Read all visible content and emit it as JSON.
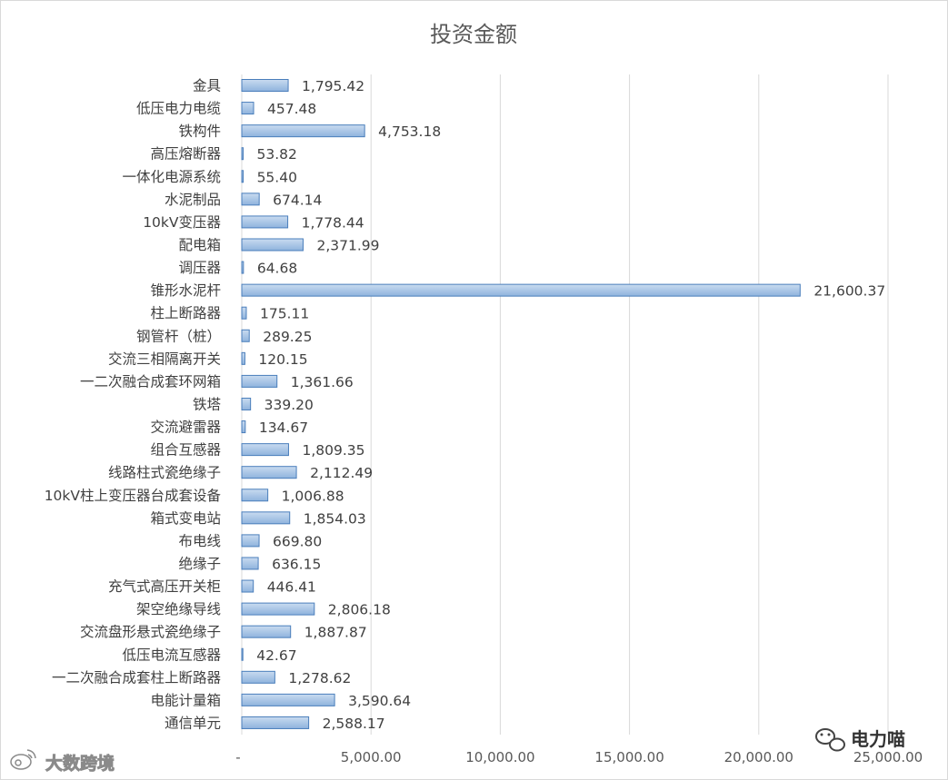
{
  "chart_data": {
    "type": "bar",
    "orientation": "horizontal",
    "title": "投资金额",
    "xlabel": "",
    "ylabel": "",
    "xlim": [
      0,
      25000
    ],
    "grid": true,
    "legend": "none",
    "tick_values": [
      0,
      5000,
      10000,
      15000,
      20000,
      25000
    ],
    "tick_labels": [
      "-",
      "5,000.00",
      "10,000.00",
      "15,000.00",
      "20,000.00",
      "25,000.00"
    ],
    "categories": [
      "金具",
      "低压电力电缆",
      "铁构件",
      "高压熔断器",
      "一体化电源系统",
      "水泥制品",
      "10kV变压器",
      "配电箱",
      "调压器",
      "锥形水泥杆",
      "柱上断路器",
      "钢管杆（桩）",
      "交流三相隔离开关",
      "一二次融合成套环网箱",
      "铁塔",
      "交流避雷器",
      "组合互感器",
      "线路柱式瓷绝缘子",
      "10kV柱上变压器台成套设备",
      "箱式变电站",
      "布电线",
      "绝缘子",
      "充气式高压开关柜",
      "架空绝缘导线",
      "交流盘形悬式瓷绝缘子",
      "低压电流互感器",
      "一二次融合成套柱上断路器",
      "电能计量箱",
      "通信单元"
    ],
    "values": [
      1795.42,
      457.48,
      4753.18,
      53.82,
      55.4,
      674.14,
      1778.44,
      2371.99,
      64.68,
      21600.37,
      175.11,
      289.25,
      120.15,
      1361.66,
      339.2,
      134.67,
      1809.35,
      2112.49,
      1006.88,
      1854.03,
      669.8,
      636.15,
      446.41,
      2806.18,
      1887.87,
      42.67,
      1278.62,
      3590.64,
      2588.17
    ],
    "value_labels": [
      "1,795.42",
      "457.48",
      "4,753.18",
      "53.82",
      "55.40",
      "674.14",
      "1,778.44",
      "2,371.99",
      "64.68",
      "21,600.37",
      "175.11",
      "289.25",
      "120.15",
      "1,361.66",
      "339.20",
      "134.67",
      "1,809.35",
      "2,112.49",
      "1,006.88",
      "1,854.03",
      "669.80",
      "636.15",
      "446.41",
      "2,806.18",
      "1,887.87",
      "42.67",
      "1,278.62",
      "3,590.64",
      "2,588.17"
    ],
    "colors": {
      "bar_fill_top": "#c9dbf0",
      "bar_fill_bottom": "#8fb3dd",
      "bar_stroke": "#4a7ebb",
      "grid": "#d9d9d9"
    }
  },
  "watermarks": {
    "right": "电力喵",
    "right_icon": "wechat-icon",
    "left": "大数跨境",
    "left_icon": "weibo-icon"
  }
}
